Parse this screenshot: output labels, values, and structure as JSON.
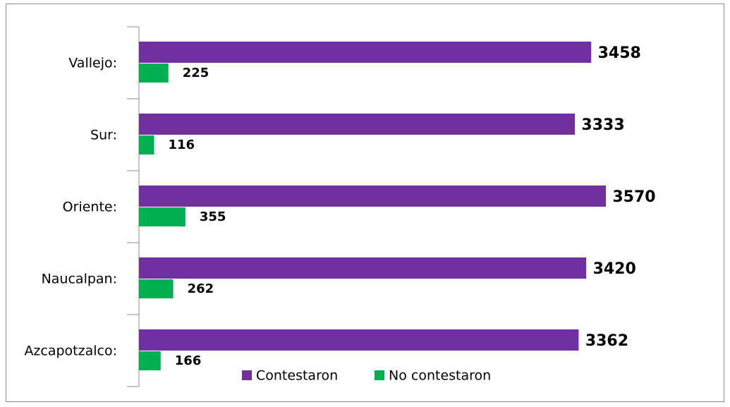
{
  "chart_data": {
    "type": "bar",
    "orientation": "horizontal",
    "categories": [
      "Vallejo:",
      "Sur:",
      "Oriente:",
      "Naucalpan:",
      "Azcapotzalco:"
    ],
    "series": [
      {
        "name": "Contestaron",
        "color": "#7030a0",
        "values": [
          3458,
          3333,
          3570,
          3420,
          3362
        ]
      },
      {
        "name": "No contestaron",
        "color": "#00b050",
        "values": [
          225,
          116,
          355,
          262,
          166
        ]
      }
    ]
  }
}
